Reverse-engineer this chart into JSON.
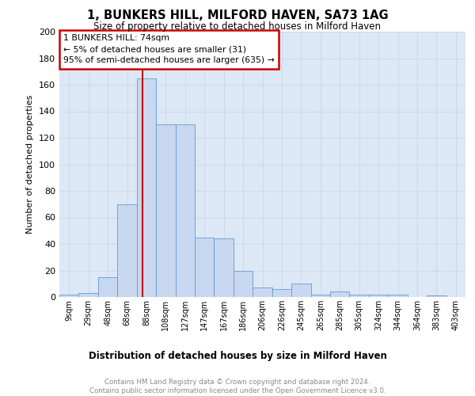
{
  "title": "1, BUNKERS HILL, MILFORD HAVEN, SA73 1AG",
  "subtitle": "Size of property relative to detached houses in Milford Haven",
  "xlabel": "Distribution of detached houses by size in Milford Haven",
  "ylabel": "Number of detached properties",
  "footnote": "Contains HM Land Registry data © Crown copyright and database right 2024.\nContains public sector information licensed under the Open Government Licence v3.0.",
  "bar_labels": [
    "9sqm",
    "29sqm",
    "48sqm",
    "68sqm",
    "88sqm",
    "108sqm",
    "127sqm",
    "147sqm",
    "167sqm",
    "186sqm",
    "206sqm",
    "226sqm",
    "245sqm",
    "265sqm",
    "285sqm",
    "305sqm",
    "324sqm",
    "344sqm",
    "364sqm",
    "383sqm",
    "403sqm"
  ],
  "bar_values": [
    2,
    3,
    15,
    70,
    165,
    130,
    130,
    45,
    44,
    20,
    7,
    6,
    10,
    2,
    4,
    2,
    2,
    2,
    0,
    1,
    0
  ],
  "bar_color": "#c8d8f0",
  "bar_edge_color": "#6699cc",
  "vline_color": "#cc0000",
  "annotation_text": "1 BUNKERS HILL: 74sqm\n← 5% of detached houses are smaller (31)\n95% of semi-detached houses are larger (635) →",
  "annotation_box_color": "#cc0000",
  "ylim": [
    0,
    200
  ],
  "yticks": [
    0,
    20,
    40,
    60,
    80,
    100,
    120,
    140,
    160,
    180,
    200
  ],
  "grid_color": "#ccd9e8",
  "background_color": "#dce8f5"
}
